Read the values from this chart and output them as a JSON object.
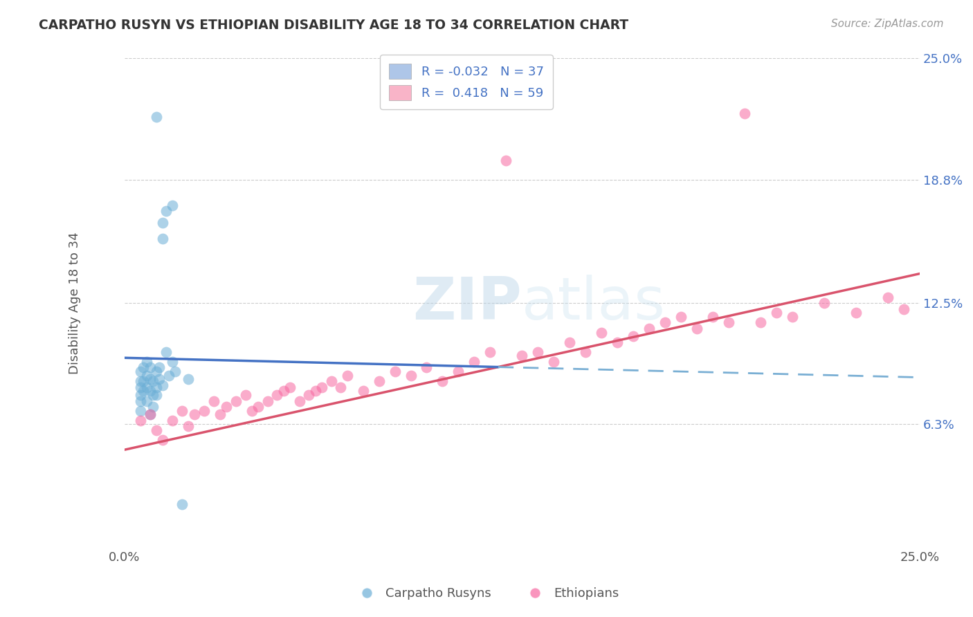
{
  "title": "CARPATHO RUSYN VS ETHIOPIAN DISABILITY AGE 18 TO 34 CORRELATION CHART",
  "source": "Source: ZipAtlas.com",
  "ylabel": "Disability Age 18 to 34",
  "xlim": [
    0.0,
    0.25
  ],
  "ylim": [
    0.0,
    0.25
  ],
  "x_tick_labels": [
    "0.0%",
    "25.0%"
  ],
  "y_tick_labels": [
    "6.3%",
    "12.5%",
    "18.8%",
    "25.0%"
  ],
  "y_tick_vals": [
    0.063,
    0.125,
    0.188,
    0.25
  ],
  "carpatho_color": "#6baed6",
  "ethiopian_color": "#f768a1",
  "legend_patch_c": "#aec6e8",
  "legend_patch_e": "#f9b4c8",
  "carpatho_r": -0.032,
  "carpatho_n": 37,
  "ethiopian_r": 0.418,
  "ethiopian_n": 59,
  "background_color": "#ffffff",
  "grid_color": "#cccccc",
  "watermark_color": "#c8dff0",
  "line_blue": "#4472c4",
  "line_blue_dashed": "#7aafd4",
  "line_pink": "#d9536c",
  "carpatho_x": [
    0.005,
    0.005,
    0.005,
    0.005,
    0.005,
    0.005,
    0.006,
    0.006,
    0.006,
    0.007,
    0.007,
    0.007,
    0.007,
    0.008,
    0.008,
    0.008,
    0.009,
    0.009,
    0.01,
    0.01,
    0.01,
    0.011,
    0.011,
    0.012,
    0.012,
    0.013,
    0.013,
    0.014,
    0.015,
    0.015,
    0.016,
    0.018,
    0.02,
    0.008,
    0.009,
    0.01,
    0.012
  ],
  "carpatho_y": [
    0.075,
    0.082,
    0.085,
    0.09,
    0.07,
    0.078,
    0.08,
    0.085,
    0.092,
    0.075,
    0.082,
    0.088,
    0.095,
    0.08,
    0.086,
    0.092,
    0.078,
    0.085,
    0.082,
    0.09,
    0.22,
    0.086,
    0.092,
    0.158,
    0.166,
    0.172,
    0.1,
    0.088,
    0.095,
    0.175,
    0.09,
    0.022,
    0.086,
    0.068,
    0.072,
    0.078,
    0.083
  ],
  "ethiopian_x": [
    0.005,
    0.008,
    0.01,
    0.012,
    0.015,
    0.018,
    0.02,
    0.022,
    0.025,
    0.028,
    0.03,
    0.032,
    0.035,
    0.038,
    0.04,
    0.042,
    0.045,
    0.048,
    0.05,
    0.052,
    0.055,
    0.058,
    0.06,
    0.062,
    0.065,
    0.068,
    0.07,
    0.075,
    0.08,
    0.085,
    0.09,
    0.095,
    0.1,
    0.105,
    0.11,
    0.115,
    0.12,
    0.125,
    0.13,
    0.135,
    0.14,
    0.145,
    0.15,
    0.155,
    0.16,
    0.165,
    0.17,
    0.175,
    0.18,
    0.185,
    0.19,
    0.195,
    0.2,
    0.205,
    0.21,
    0.22,
    0.23,
    0.24,
    0.245
  ],
  "ethiopian_y": [
    0.065,
    0.068,
    0.06,
    0.055,
    0.065,
    0.07,
    0.062,
    0.068,
    0.07,
    0.075,
    0.068,
    0.072,
    0.075,
    0.078,
    0.07,
    0.072,
    0.075,
    0.078,
    0.08,
    0.082,
    0.075,
    0.078,
    0.08,
    0.082,
    0.085,
    0.082,
    0.088,
    0.08,
    0.085,
    0.09,
    0.088,
    0.092,
    0.085,
    0.09,
    0.095,
    0.1,
    0.198,
    0.098,
    0.1,
    0.095,
    0.105,
    0.1,
    0.11,
    0.105,
    0.108,
    0.112,
    0.115,
    0.118,
    0.112,
    0.118,
    0.115,
    0.222,
    0.115,
    0.12,
    0.118,
    0.125,
    0.12,
    0.128,
    0.122
  ]
}
